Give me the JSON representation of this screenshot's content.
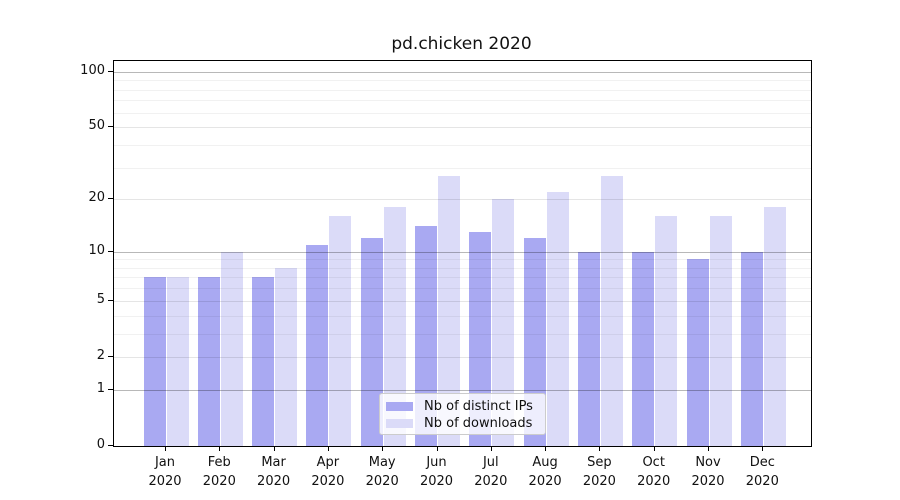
{
  "chart_data": {
    "type": "bar",
    "title": "pd.chicken 2020",
    "categories": [
      "Jan",
      "Feb",
      "Mar",
      "Apr",
      "May",
      "Jun",
      "Jul",
      "Aug",
      "Sep",
      "Oct",
      "Nov",
      "Dec"
    ],
    "category_year": "2020",
    "series": [
      {
        "name": "Nb of distinct IPs",
        "color": "#a9a9f2",
        "values": [
          7,
          7,
          7,
          11,
          12,
          14,
          13,
          12,
          10,
          10,
          9,
          10
        ]
      },
      {
        "name": "Nb of downloads",
        "color": "#dbdbf8",
        "values": [
          7,
          10,
          8,
          16,
          18,
          27,
          20,
          22,
          27,
          16,
          16,
          18
        ]
      }
    ],
    "yscale": "log1p",
    "ylim": [
      0,
      115
    ],
    "ytick_values": [
      0,
      1,
      2,
      5,
      10,
      20,
      50,
      100
    ],
    "major_grid_values": [
      1,
      10,
      100
    ],
    "minor_grid_values": [
      2,
      3,
      4,
      5,
      6,
      7,
      8,
      9,
      20,
      30,
      40,
      50,
      60,
      70,
      80,
      90
    ],
    "grid": true,
    "legend_position": "lower center",
    "xlabel": "",
    "ylabel": ""
  },
  "colors": {
    "major_grid": "rgba(0,0,0,0.28)",
    "labeled_grid": "rgba(0,0,0,0.10)",
    "minor_grid": "rgba(0,0,0,0.055)",
    "axis": "#000000",
    "text": "#111111"
  }
}
